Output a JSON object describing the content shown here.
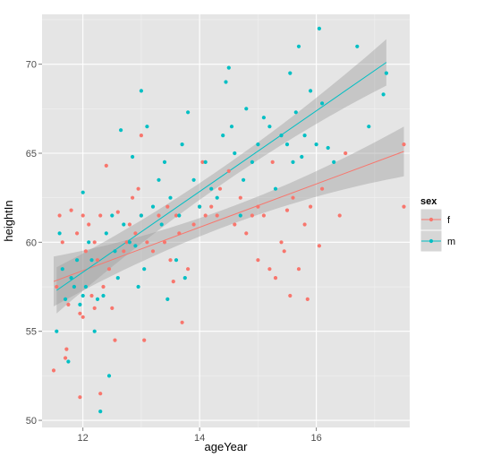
{
  "chart_data": {
    "type": "scatter",
    "xlabel": "ageYear",
    "ylabel": "heightIn",
    "xlim": [
      11.3,
      17.6
    ],
    "ylim": [
      49.6,
      72.8
    ],
    "x_ticks": [
      12,
      14,
      16
    ],
    "y_ticks": [
      50,
      55,
      60,
      65,
      70
    ],
    "grid": true,
    "legend": {
      "title": "sex",
      "placement": "right"
    },
    "colors": {
      "f": "#F8766D",
      "m": "#00BFC4",
      "panel": "#E5E5E5",
      "grid": "#ffffff",
      "band": "#999999"
    },
    "series": [
      {
        "name": "f",
        "color": "#F8766D",
        "points": [
          [
            11.5,
            52.8
          ],
          [
            11.55,
            57.5
          ],
          [
            11.6,
            61.5
          ],
          [
            11.65,
            60.0
          ],
          [
            11.7,
            53.5
          ],
          [
            11.72,
            54.0
          ],
          [
            11.75,
            56.5
          ],
          [
            11.8,
            61.8
          ],
          [
            11.85,
            57.5
          ],
          [
            11.9,
            60.5
          ],
          [
            11.95,
            56.0
          ],
          [
            11.95,
            51.3
          ],
          [
            12.0,
            61.5
          ],
          [
            12.0,
            55.8
          ],
          [
            12.05,
            59.5
          ],
          [
            12.1,
            61.0
          ],
          [
            12.15,
            57.0
          ],
          [
            12.2,
            60.0
          ],
          [
            12.2,
            56.3
          ],
          [
            12.25,
            59.0
          ],
          [
            12.3,
            61.5
          ],
          [
            12.3,
            51.5
          ],
          [
            12.35,
            57.5
          ],
          [
            12.4,
            64.3
          ],
          [
            12.45,
            58.5
          ],
          [
            12.5,
            56.3
          ],
          [
            12.55,
            54.5
          ],
          [
            12.6,
            61.7
          ],
          [
            12.7,
            59.5
          ],
          [
            12.75,
            60.0
          ],
          [
            12.8,
            61.0
          ],
          [
            12.85,
            62.5
          ],
          [
            12.9,
            60.5
          ],
          [
            12.95,
            63.0
          ],
          [
            13.0,
            66.0
          ],
          [
            13.0,
            61.5
          ],
          [
            13.05,
            54.5
          ],
          [
            13.1,
            60.0
          ],
          [
            13.2,
            59.5
          ],
          [
            13.3,
            61.5
          ],
          [
            13.4,
            60.0
          ],
          [
            13.45,
            62.0
          ],
          [
            13.5,
            59.0
          ],
          [
            13.55,
            57.8
          ],
          [
            13.6,
            61.5
          ],
          [
            13.65,
            60.5
          ],
          [
            13.7,
            55.5
          ],
          [
            13.8,
            58.5
          ],
          [
            13.9,
            61.0
          ],
          [
            14.0,
            62.0
          ],
          [
            14.05,
            64.5
          ],
          [
            14.1,
            61.5
          ],
          [
            14.2,
            62.0
          ],
          [
            14.3,
            61.5
          ],
          [
            14.35,
            63.0
          ],
          [
            14.5,
            64.0
          ],
          [
            14.6,
            61.0
          ],
          [
            14.7,
            62.5
          ],
          [
            14.8,
            60.5
          ],
          [
            14.9,
            61.5
          ],
          [
            15.0,
            62.0
          ],
          [
            15.0,
            59.0
          ],
          [
            15.1,
            61.5
          ],
          [
            15.2,
            58.5
          ],
          [
            15.25,
            64.5
          ],
          [
            15.3,
            58.0
          ],
          [
            15.4,
            60.0
          ],
          [
            15.45,
            59.5
          ],
          [
            15.5,
            61.8
          ],
          [
            15.55,
            57.0
          ],
          [
            15.6,
            62.5
          ],
          [
            15.7,
            58.5
          ],
          [
            15.8,
            61.0
          ],
          [
            15.85,
            56.8
          ],
          [
            15.9,
            62.0
          ],
          [
            16.05,
            59.8
          ],
          [
            16.1,
            63.0
          ],
          [
            16.4,
            61.5
          ],
          [
            16.5,
            65.0
          ],
          [
            17.5,
            62.0
          ],
          [
            17.5,
            65.5
          ]
        ]
      },
      {
        "name": "m",
        "color": "#00BFC4",
        "points": [
          [
            11.55,
            55.0
          ],
          [
            11.6,
            60.5
          ],
          [
            11.65,
            58.5
          ],
          [
            11.7,
            56.8
          ],
          [
            11.75,
            53.3
          ],
          [
            11.8,
            58.0
          ],
          [
            11.85,
            57.5
          ],
          [
            11.9,
            59.0
          ],
          [
            11.95,
            56.5
          ],
          [
            12.0,
            62.8
          ],
          [
            12.0,
            57.0
          ],
          [
            12.05,
            57.5
          ],
          [
            12.1,
            60.0
          ],
          [
            12.15,
            59.0
          ],
          [
            12.2,
            55.0
          ],
          [
            12.25,
            56.8
          ],
          [
            12.3,
            50.5
          ],
          [
            12.35,
            57.0
          ],
          [
            12.4,
            60.5
          ],
          [
            12.45,
            52.5
          ],
          [
            12.5,
            61.5
          ],
          [
            12.55,
            59.5
          ],
          [
            12.6,
            58.0
          ],
          [
            12.65,
            66.3
          ],
          [
            12.7,
            61.0
          ],
          [
            12.8,
            60.0
          ],
          [
            12.85,
            64.8
          ],
          [
            12.9,
            59.8
          ],
          [
            12.95,
            57.5
          ],
          [
            13.0,
            61.5
          ],
          [
            13.0,
            68.5
          ],
          [
            13.05,
            58.5
          ],
          [
            13.1,
            66.5
          ],
          [
            13.2,
            62.0
          ],
          [
            13.3,
            63.5
          ],
          [
            13.35,
            61.0
          ],
          [
            13.4,
            64.5
          ],
          [
            13.45,
            56.8
          ],
          [
            13.5,
            62.5
          ],
          [
            13.6,
            59.0
          ],
          [
            13.65,
            61.5
          ],
          [
            13.7,
            65.5
          ],
          [
            13.75,
            58.0
          ],
          [
            13.8,
            67.3
          ],
          [
            13.9,
            63.5
          ],
          [
            14.0,
            62.0
          ],
          [
            14.1,
            64.5
          ],
          [
            14.2,
            63.0
          ],
          [
            14.3,
            62.5
          ],
          [
            14.4,
            66.0
          ],
          [
            14.45,
            69.0
          ],
          [
            14.5,
            69.8
          ],
          [
            14.55,
            66.5
          ],
          [
            14.6,
            65.0
          ],
          [
            14.7,
            61.5
          ],
          [
            14.75,
            63.5
          ],
          [
            14.8,
            67.5
          ],
          [
            14.9,
            64.5
          ],
          [
            15.0,
            65.5
          ],
          [
            15.1,
            67.0
          ],
          [
            15.2,
            66.5
          ],
          [
            15.3,
            63.0
          ],
          [
            15.4,
            66.0
          ],
          [
            15.5,
            65.5
          ],
          [
            15.55,
            69.5
          ],
          [
            15.6,
            64.5
          ],
          [
            15.65,
            67.3
          ],
          [
            15.7,
            71.0
          ],
          [
            15.75,
            64.8
          ],
          [
            15.8,
            66.0
          ],
          [
            15.9,
            68.5
          ],
          [
            16.0,
            65.5
          ],
          [
            16.05,
            72.0
          ],
          [
            16.1,
            67.8
          ],
          [
            16.2,
            65.3
          ],
          [
            16.3,
            64.5
          ],
          [
            16.7,
            71.0
          ],
          [
            16.9,
            66.5
          ],
          [
            17.15,
            68.3
          ],
          [
            17.2,
            69.5
          ]
        ]
      }
    ],
    "fits": [
      {
        "name": "f",
        "color": "#F8766D",
        "x_range": [
          11.5,
          17.5
        ],
        "y_range": [
          57.8,
          65.1
        ],
        "band_width": 1.4
      },
      {
        "name": "m",
        "color": "#00BFC4",
        "x_range": [
          11.55,
          17.2
        ],
        "y_range": [
          57.3,
          70.1
        ],
        "band_width": 1.3
      }
    ]
  }
}
